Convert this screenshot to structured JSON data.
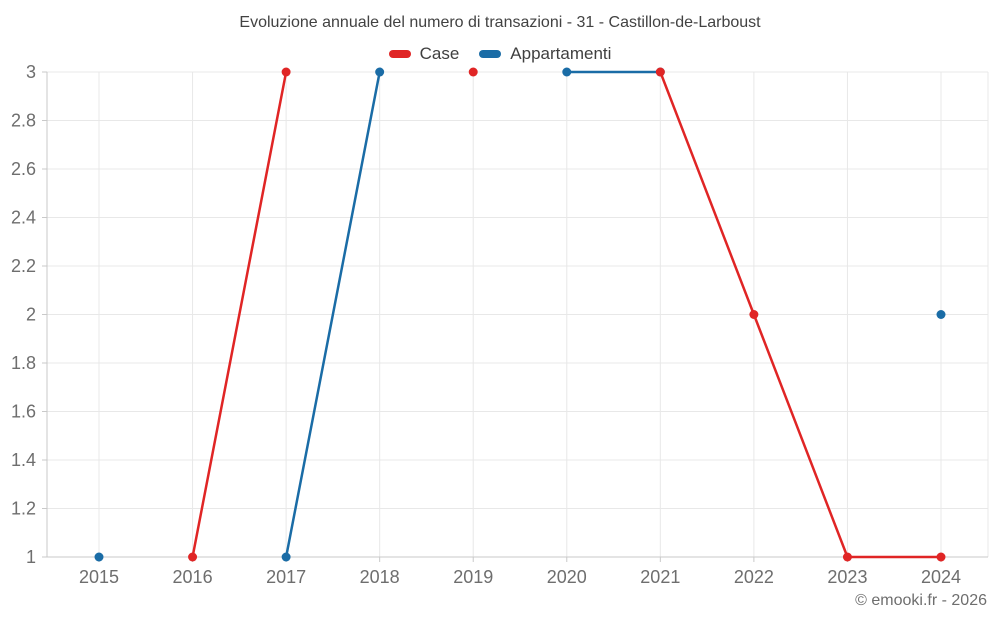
{
  "title": "Evoluzione annuale del numero di transazioni - 31 - Castillon-de-Larboust",
  "watermark": "© emooki.fr - 2026",
  "colors": {
    "title_text": "#424242",
    "legend_text": "#3f3f3f",
    "tick_text": "#6e6e6e",
    "gridline": "#e8e8e8",
    "axis": "#c9c9c9",
    "case_red": "#e02525",
    "appartamenti_blue": "#1a6ca6"
  },
  "chart_data": {
    "type": "line",
    "title": "Evoluzione annuale del numero di transazioni - 31 - Castillon-de-Larboust",
    "x": [
      2015,
      2016,
      2017,
      2018,
      2019,
      2020,
      2021,
      2022,
      2023,
      2024
    ],
    "series": [
      {
        "name": "Case",
        "color": "#e02525",
        "values": [
          null,
          1,
          3,
          null,
          3,
          null,
          3,
          2,
          1,
          1
        ]
      },
      {
        "name": "Appartamenti",
        "color": "#1a6ca6",
        "values": [
          1,
          null,
          1,
          3,
          null,
          3,
          3,
          null,
          null,
          2
        ]
      }
    ],
    "xlabel": "",
    "ylabel": "",
    "ylim": [
      1,
      3
    ],
    "ytick_step": 0.2,
    "ytick_labels": [
      "1",
      "1.2",
      "1.4",
      "1.6",
      "1.8",
      "2",
      "2.2",
      "2.4",
      "2.6",
      "2.8",
      "3"
    ],
    "grid": true,
    "legend_position": "top",
    "marker": "circle"
  }
}
